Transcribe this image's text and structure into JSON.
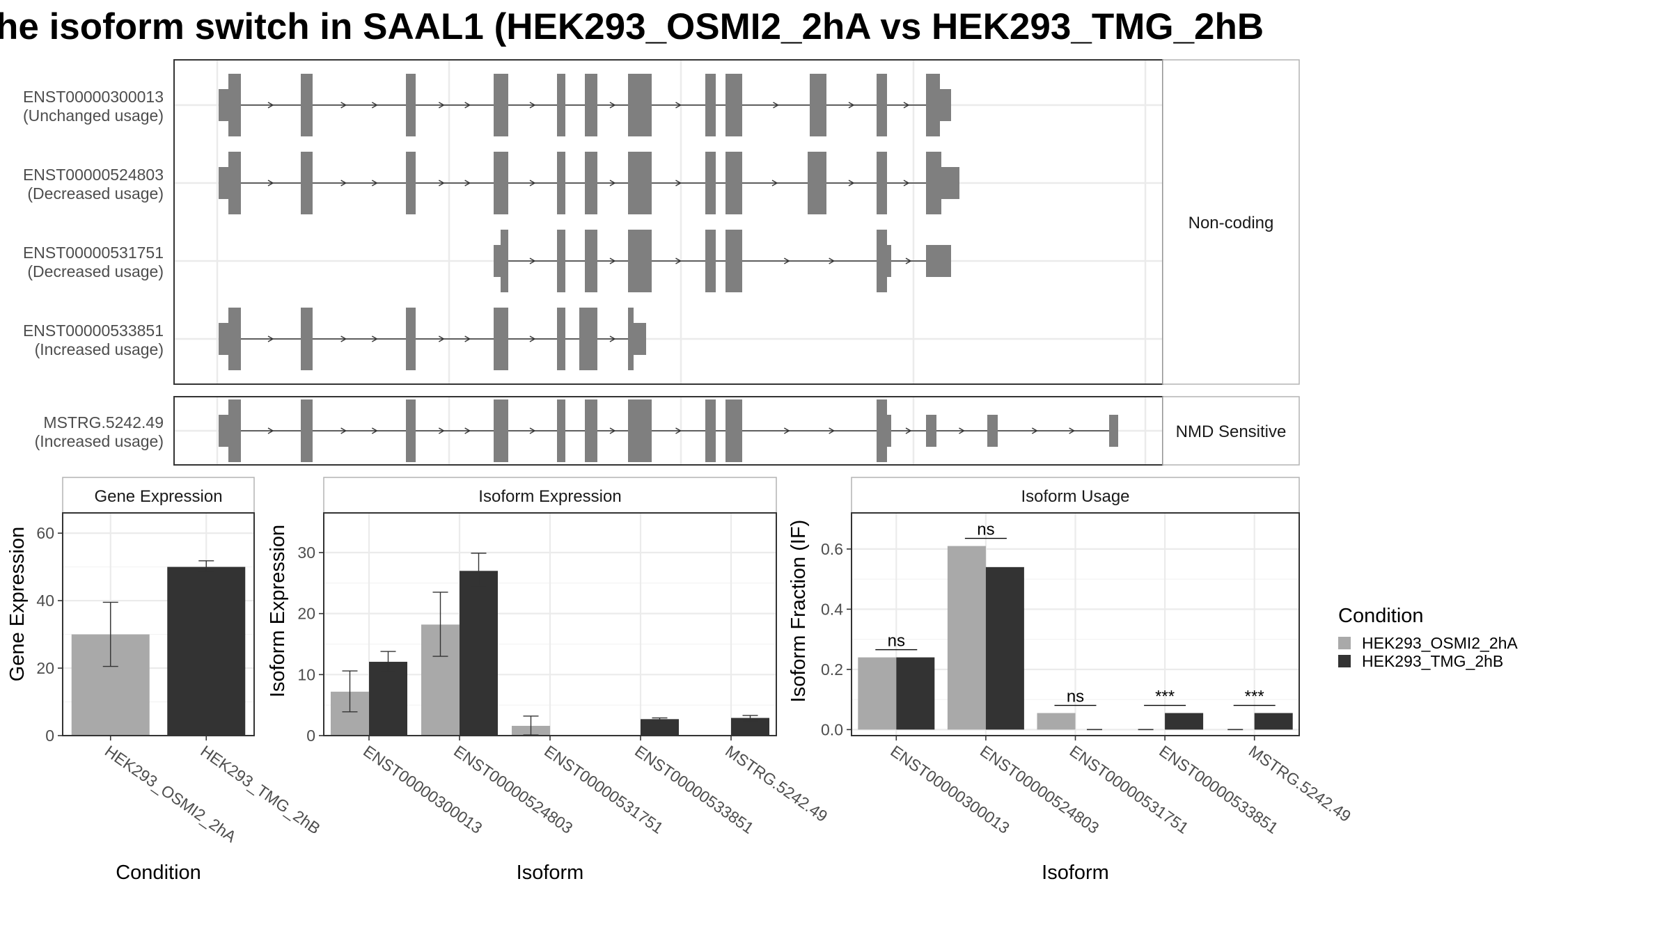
{
  "title": "he isoform switch in SAAL1 (HEK293_OSMI2_2hA vs HEK293_TMG_2hB",
  "colors": {
    "exon": "#7f7f7f",
    "intron": "#333333",
    "cond1": "#a9a9a9",
    "cond2": "#333333",
    "grid": "#ebebeb",
    "frame": "#333333",
    "strip_border": "#b3b3b3"
  },
  "structure": {
    "groups": [
      {
        "label": "Non-coding",
        "isoforms": [
          {
            "id": "ENST00000300013",
            "usage": "(Unchanged usage)"
          },
          {
            "id": "ENST00000524803",
            "usage": "(Decreased usage)"
          },
          {
            "id": "ENST00000531751",
            "usage": "(Decreased usage)"
          },
          {
            "id": "ENST00000533851",
            "usage": "(Increased usage)"
          }
        ]
      },
      {
        "label": "NMD Sensitive",
        "isoforms": [
          {
            "id": "MSTRG.5242.49",
            "usage": "(Increased usage)"
          }
        ]
      }
    ]
  },
  "legend": {
    "title": "Condition",
    "entries": [
      "HEK293_OSMI2_2hA",
      "HEK293_TMG_2hB"
    ]
  },
  "chart_data": [
    {
      "type": "bar",
      "title": "Gene Expression",
      "xlabel": "Condition",
      "ylabel": "Gene Expression",
      "categories": [
        "HEK293_OSMI2_2hA",
        "HEK293_TMG_2hB"
      ],
      "values": [
        30,
        50
      ],
      "errors": [
        [
          20.5,
          39.5
        ],
        [
          48.5,
          51.8
        ]
      ],
      "ylim": [
        0,
        66
      ],
      "yticks": [
        0,
        20,
        40,
        60
      ],
      "grid": true
    },
    {
      "type": "bar",
      "title": "Isoform Expression",
      "xlabel": "Isoform",
      "ylabel": "Isoform Expression",
      "categories": [
        "ENST00000300013",
        "ENST00000524803",
        "ENST00000531751",
        "ENST00000533851",
        "MSTRG.5242.49"
      ],
      "series": [
        {
          "name": "HEK293_OSMI2_2hA",
          "values": [
            7.2,
            18.2,
            1.6,
            0,
            0
          ],
          "errors": [
            [
              3.9,
              10.6
            ],
            [
              13.0,
              23.5
            ],
            [
              0.1,
              3.2
            ],
            [
              0,
              0
            ],
            [
              0,
              0
            ]
          ]
        },
        {
          "name": "HEK293_TMG_2hB",
          "values": [
            12.1,
            27.0,
            0,
            2.7,
            2.9
          ],
          "errors": [
            [
              10.5,
              13.8
            ],
            [
              24.5,
              29.9
            ],
            [
              0,
              0
            ],
            [
              2.5,
              2.9
            ],
            [
              2.4,
              3.3
            ]
          ]
        }
      ],
      "ylim": [
        0,
        36.5
      ],
      "yticks": [
        0,
        10,
        20,
        30
      ],
      "grid": true
    },
    {
      "type": "bar",
      "title": "Isoform Usage",
      "xlabel": "Isoform",
      "ylabel": "Isoform Fraction (IF)",
      "categories": [
        "ENST00000300013",
        "ENST00000524803",
        "ENST00000531751",
        "ENST00000533851",
        "MSTRG.5242.49"
      ],
      "series": [
        {
          "name": "HEK293_OSMI2_2hA",
          "values": [
            0.24,
            0.61,
            0.055,
            0,
            0
          ]
        },
        {
          "name": "HEK293_TMG_2hB",
          "values": [
            0.24,
            0.54,
            0,
            0.055,
            0.055
          ]
        }
      ],
      "significance": [
        "ns",
        "ns",
        "ns",
        "***",
        "***"
      ],
      "ylim": [
        -0.02,
        0.72
      ],
      "yticks": [
        "0.0",
        "0.2",
        "0.4",
        "0.6"
      ],
      "grid": true
    }
  ]
}
